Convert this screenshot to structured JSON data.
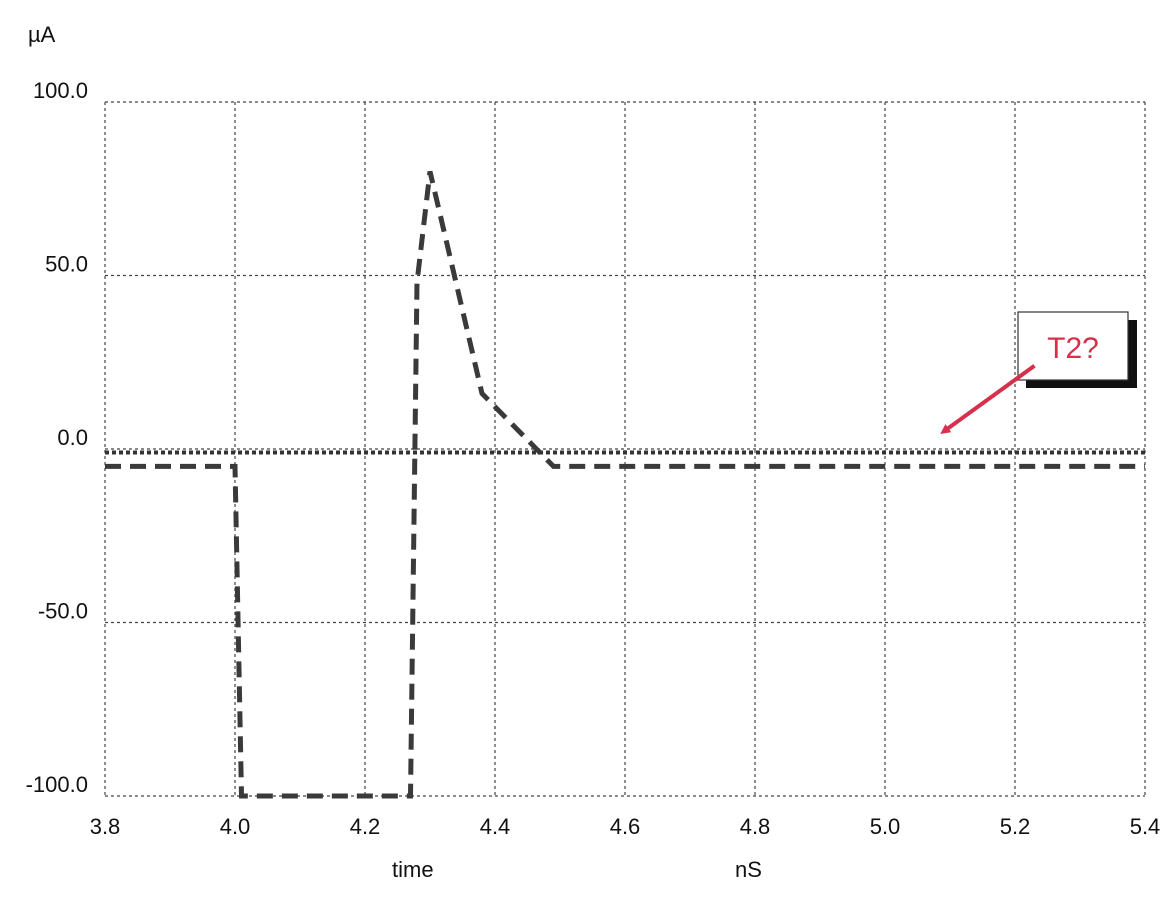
{
  "chart_data": {
    "type": "line",
    "y_unit_label": "µA",
    "xlabel": "time",
    "x_unit_label": "nS",
    "xlim": [
      3.8,
      5.4
    ],
    "ylim": [
      -100,
      100
    ],
    "x_ticks": [
      3.8,
      4.0,
      4.2,
      4.4,
      4.6,
      4.8,
      5.0,
      5.2,
      5.4
    ],
    "x_tick_labels": [
      "3.8",
      "4.0",
      "4.2",
      "4.4",
      "4.6",
      "4.8",
      "5.0",
      "5.2",
      "5.4"
    ],
    "y_ticks": [
      100,
      50,
      0,
      -50,
      -100
    ],
    "y_tick_labels": [
      "100.0",
      "50.0",
      "0.0",
      "-50.0",
      "-100.0"
    ],
    "grid": true,
    "series": [
      {
        "style": "dashed",
        "color": "#3a3a3a",
        "points": [
          [
            3.8,
            -5
          ],
          [
            4.0,
            -5
          ],
          [
            4.01,
            -100
          ],
          [
            4.27,
            -100
          ],
          [
            4.28,
            48
          ],
          [
            4.3,
            80
          ],
          [
            4.38,
            16
          ],
          [
            4.49,
            -5
          ],
          [
            5.4,
            -5
          ]
        ]
      },
      {
        "style": "dotted",
        "color": "#333333",
        "points": [
          [
            3.8,
            -1
          ],
          [
            5.4,
            -1
          ]
        ]
      }
    ],
    "annotation": {
      "text": "T2?",
      "text_color": "#d6304a",
      "arrow_color": "#d6304a",
      "arrow_from": [
        5.23,
        24
      ],
      "arrow_to": [
        5.09,
        5
      ]
    }
  }
}
